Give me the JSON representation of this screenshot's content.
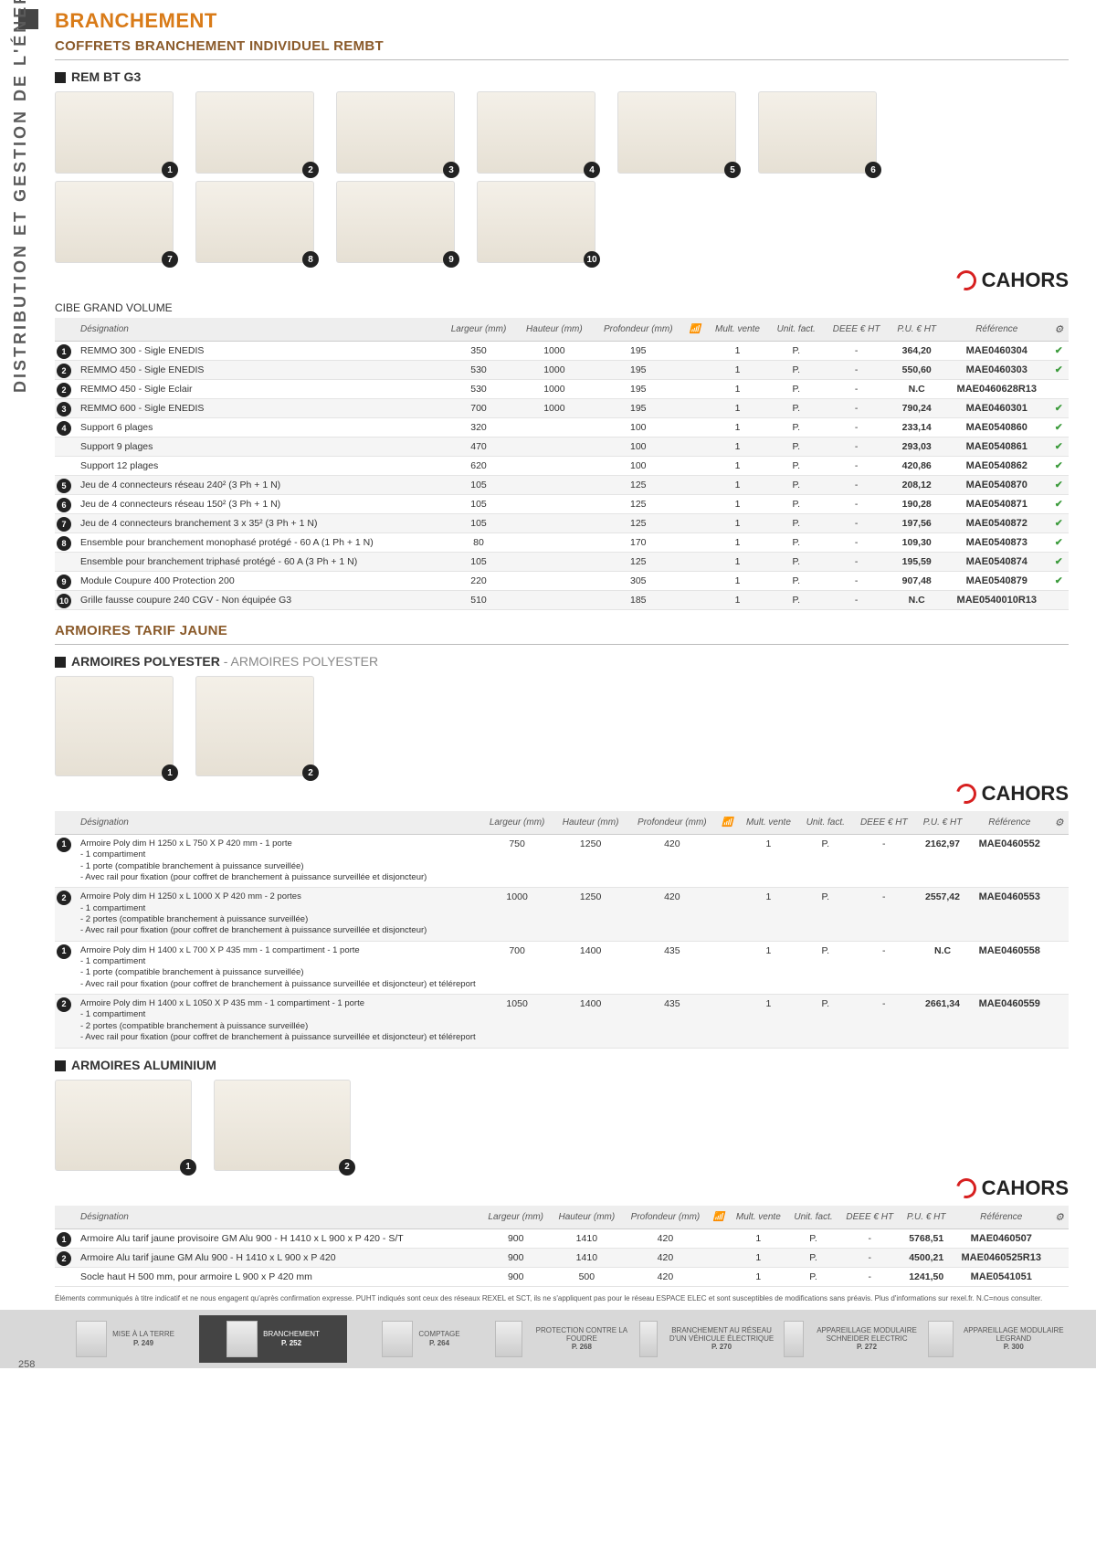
{
  "page": {
    "side_label": "DISTRIBUTION ET GESTION DE L'ÉNERGIE",
    "number": "258",
    "h1": "BRANCHEMENT",
    "h2": "COFFRETS BRANCHEMENT INDIVIDUEL REMBT",
    "footnote": "Éléments communiqués à titre indicatif et ne nous engagent qu'après confirmation expresse. PUHT indiqués sont ceux des réseaux REXEL et SCT, ils ne s'appliquent pas pour le réseau ESPACE ELEC et sont susceptibles de modifications sans préavis. Plus d'informations sur rexel.fr. N.C=nous consulter."
  },
  "brand": "CAHORS",
  "sections": {
    "rembt_g3": {
      "title": "REM BT G3",
      "sub_label": "CIBE GRAND VOLUME"
    },
    "armoires_tj": {
      "title": "ARMOIRES TARIF JAUNE"
    },
    "armoires_poly": {
      "title": "ARMOIRES POLYESTER",
      "light": " - ARMOIRES POLYESTER"
    },
    "armoires_alu": {
      "title": "ARMOIRES ALUMINIUM"
    }
  },
  "cols": {
    "designation": "Désignation",
    "largeur": "Largeur (mm)",
    "hauteur": "Hauteur (mm)",
    "profondeur": "Profondeur (mm)",
    "mult_vente": "Mult. vente",
    "unit_fact": "Unit. fact.",
    "deee": "DEEE € HT",
    "pu": "P.U. € HT",
    "reference": "Référence"
  },
  "table1": [
    {
      "n": "1",
      "des": "REMMO 300 - Sigle ENEDIS",
      "l": "350",
      "h": "1000",
      "p": "195",
      "mv": "1",
      "uf": "P.",
      "de": "-",
      "pu": "364,20",
      "ref": "MAE0460304",
      "ck": "✔"
    },
    {
      "n": "2",
      "des": "REMMO 450 - Sigle ENEDIS",
      "l": "530",
      "h": "1000",
      "p": "195",
      "mv": "1",
      "uf": "P.",
      "de": "-",
      "pu": "550,60",
      "ref": "MAE0460303",
      "ck": "✔"
    },
    {
      "n": "2",
      "des": "REMMO 450 - Sigle Eclair",
      "l": "530",
      "h": "1000",
      "p": "195",
      "mv": "1",
      "uf": "P.",
      "de": "-",
      "pu": "N.C",
      "ref": "MAE0460628R13",
      "ck": ""
    },
    {
      "n": "3",
      "des": "REMMO 600 - Sigle ENEDIS",
      "l": "700",
      "h": "1000",
      "p": "195",
      "mv": "1",
      "uf": "P.",
      "de": "-",
      "pu": "790,24",
      "ref": "MAE0460301",
      "ck": "✔"
    },
    {
      "n": "4",
      "des": "Support 6 plages",
      "l": "320",
      "h": "",
      "p": "100",
      "mv": "1",
      "uf": "P.",
      "de": "-",
      "pu": "233,14",
      "ref": "MAE0540860",
      "ck": "✔"
    },
    {
      "n": "",
      "des": "Support 9 plages",
      "l": "470",
      "h": "",
      "p": "100",
      "mv": "1",
      "uf": "P.",
      "de": "-",
      "pu": "293,03",
      "ref": "MAE0540861",
      "ck": "✔"
    },
    {
      "n": "",
      "des": "Support 12 plages",
      "l": "620",
      "h": "",
      "p": "100",
      "mv": "1",
      "uf": "P.",
      "de": "-",
      "pu": "420,86",
      "ref": "MAE0540862",
      "ck": "✔"
    },
    {
      "n": "5",
      "des": "Jeu de 4 connecteurs réseau 240² (3 Ph + 1 N)",
      "l": "105",
      "h": "",
      "p": "125",
      "mv": "1",
      "uf": "P.",
      "de": "-",
      "pu": "208,12",
      "ref": "MAE0540870",
      "ck": "✔"
    },
    {
      "n": "6",
      "des": "Jeu de 4 connecteurs réseau 150² (3 Ph + 1 N)",
      "l": "105",
      "h": "",
      "p": "125",
      "mv": "1",
      "uf": "P.",
      "de": "-",
      "pu": "190,28",
      "ref": "MAE0540871",
      "ck": "✔"
    },
    {
      "n": "7",
      "des": "Jeu de 4 connecteurs branchement 3 x 35² (3 Ph +  1 N)",
      "l": "105",
      "h": "",
      "p": "125",
      "mv": "1",
      "uf": "P.",
      "de": "-",
      "pu": "197,56",
      "ref": "MAE0540872",
      "ck": "✔"
    },
    {
      "n": "8",
      "des": "Ensemble pour branchement monophasé protégé - 60 A (1 Ph + 1 N)",
      "l": "80",
      "h": "",
      "p": "170",
      "mv": "1",
      "uf": "P.",
      "de": "-",
      "pu": "109,30",
      "ref": "MAE0540873",
      "ck": "✔"
    },
    {
      "n": "",
      "des": "Ensemble pour branchement triphasé protégé - 60 A (3 Ph + 1 N)",
      "l": "105",
      "h": "",
      "p": "125",
      "mv": "1",
      "uf": "P.",
      "de": "-",
      "pu": "195,59",
      "ref": "MAE0540874",
      "ck": "✔"
    },
    {
      "n": "9",
      "des": "Module Coupure 400 Protection 200",
      "l": "220",
      "h": "",
      "p": "305",
      "mv": "1",
      "uf": "P.",
      "de": "-",
      "pu": "907,48",
      "ref": "MAE0540879",
      "ck": "✔"
    },
    {
      "n": "10",
      "des": "Grille fausse coupure 240 CGV - Non équipée G3",
      "l": "510",
      "h": "",
      "p": "185",
      "mv": "1",
      "uf": "P.",
      "de": "-",
      "pu": "N.C",
      "ref": "MAE0540010R13",
      "ck": ""
    }
  ],
  "table2": [
    {
      "n": "1",
      "des": "Armoire Poly dim H 1250 x L 750 X P 420 mm - 1 porte\n- 1 compartiment\n- 1 porte (compatible branchement à puissance surveillée)\n- Avec rail pour fixation (pour coffret de branchement à puissance surveillée et disjoncteur)",
      "l": "750",
      "h": "1250",
      "p": "420",
      "mv": "1",
      "uf": "P.",
      "de": "-",
      "pu": "2162,97",
      "ref": "MAE0460552",
      "ck": ""
    },
    {
      "n": "2",
      "des": "Armoire Poly dim H 1250 x L 1000 X P 420 mm - 2 portes\n- 1 compartiment\n- 2 portes (compatible branchement à puissance surveillée)\n- Avec rail pour fixation (pour coffret de branchement à puissance surveillée et disjoncteur)",
      "l": "1000",
      "h": "1250",
      "p": "420",
      "mv": "1",
      "uf": "P.",
      "de": "-",
      "pu": "2557,42",
      "ref": "MAE0460553",
      "ck": ""
    },
    {
      "n": "1",
      "des": "Armoire Poly dim H 1400 x L 700 X P 435 mm - 1 compartiment - 1 porte\n- 1 compartiment\n- 1 porte (compatible branchement à puissance surveillée)\n- Avec rail pour fixation (pour coffret de branchement à puissance surveillée et disjoncteur) et téléreport",
      "l": "700",
      "h": "1400",
      "p": "435",
      "mv": "1",
      "uf": "P.",
      "de": "-",
      "pu": "N.C",
      "ref": "MAE0460558",
      "ck": ""
    },
    {
      "n": "2",
      "des": "Armoire Poly dim H 1400 x L 1050 X P 435 mm - 1 compartiment - 1 porte\n- 1 compartiment\n- 2 portes (compatible branchement à puissance surveillée)\n- Avec rail pour fixation (pour coffret de branchement à puissance surveillée et disjoncteur) et téléreport",
      "l": "1050",
      "h": "1400",
      "p": "435",
      "mv": "1",
      "uf": "P.",
      "de": "-",
      "pu": "2661,34",
      "ref": "MAE0460559",
      "ck": ""
    }
  ],
  "table3": [
    {
      "n": "1",
      "des": "Armoire Alu tarif jaune provisoire GM Alu 900  - H 1410 x L 900 x P 420 - S/T",
      "l": "900",
      "h": "1410",
      "p": "420",
      "mv": "1",
      "uf": "P.",
      "de": "-",
      "pu": "5768,51",
      "ref": "MAE0460507",
      "ck": ""
    },
    {
      "n": "2",
      "des": "Armoire Alu tarif jaune GM Alu 900  - H 1410 x L 900 x P 420",
      "l": "900",
      "h": "1410",
      "p": "420",
      "mv": "1",
      "uf": "P.",
      "de": "-",
      "pu": "4500,21",
      "ref": "MAE0460525R13",
      "ck": ""
    },
    {
      "n": "",
      "des": "Socle haut H 500 mm, pour armoire L 900 x P 420 mm",
      "l": "900",
      "h": "500",
      "p": "420",
      "mv": "1",
      "uf": "P.",
      "de": "-",
      "pu": "1241,50",
      "ref": "MAE0541051",
      "ck": ""
    }
  ],
  "footer": [
    {
      "t": "MISE À LA TERRE",
      "p": "P. 249"
    },
    {
      "t": "BRANCHEMENT",
      "p": "P. 252"
    },
    {
      "t": "COMPTAGE",
      "p": "P. 264"
    },
    {
      "t": "PROTECTION CONTRE LA FOUDRE",
      "p": "P. 268"
    },
    {
      "t": "BRANCHEMENT AU RÉSEAU D'UN VÉHICULE ÉLECTRIQUE",
      "p": "P. 270"
    },
    {
      "t": "APPAREILLAGE MODULAIRE SCHNEIDER ELECTRIC",
      "p": "P. 272"
    },
    {
      "t": "APPAREILLAGE MODULAIRE LEGRAND",
      "p": "P. 300"
    }
  ]
}
